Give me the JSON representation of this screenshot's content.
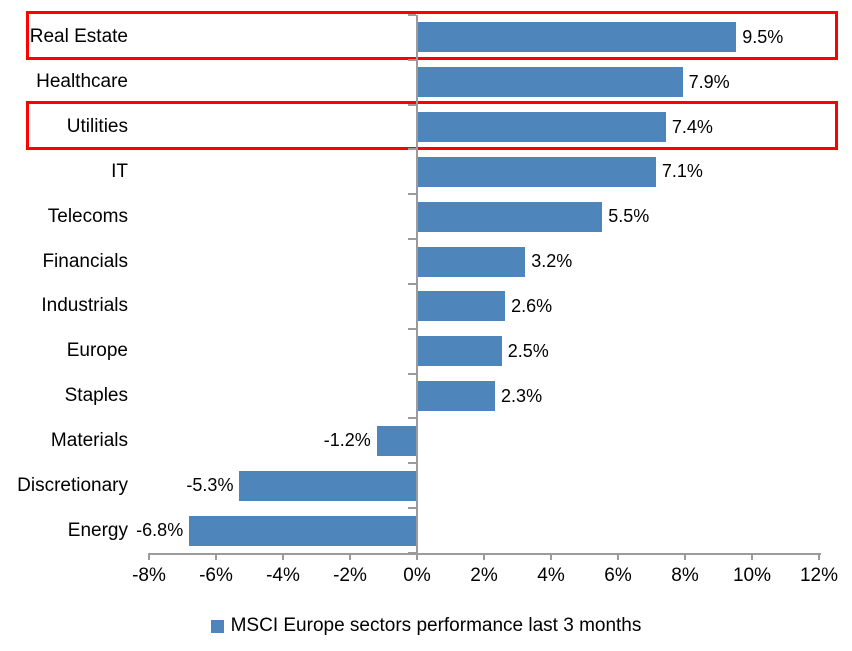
{
  "chart_data": {
    "type": "bar",
    "orientation": "horizontal",
    "title": "",
    "categories": [
      "Real Estate",
      "Healthcare",
      "Utilities",
      "IT",
      "Telecoms",
      "Financials",
      "Industrials",
      "Europe",
      "Staples",
      "Materials",
      "Discretionary",
      "Energy"
    ],
    "values": [
      9.5,
      7.9,
      7.4,
      7.1,
      5.5,
      3.2,
      2.6,
      2.5,
      2.3,
      -1.2,
      -5.3,
      -6.8
    ],
    "data_labels": [
      "9.5%",
      "7.9%",
      "7.4%",
      "7.1%",
      "5.5%",
      "3.2%",
      "2.6%",
      "2.5%",
      "2.3%",
      "-1.2%",
      "-5.3%",
      "-6.8%"
    ],
    "x_tick_labels": [
      "-8%",
      "-6%",
      "-4%",
      "-2%",
      "0%",
      "2%",
      "4%",
      "6%",
      "8%",
      "10%",
      "12%"
    ],
    "x_min": -8,
    "x_max": 12,
    "x_step": 2,
    "grid": "off",
    "legend": "MSCI Europe sectors performance last 3 months",
    "legend_position": "bottom-center",
    "bar_color": "#4E86BC",
    "axis_color": "#9B9B9B",
    "highlight_color": "#FF0000",
    "highlighted_categories": [
      "Real Estate",
      "Utilities"
    ]
  }
}
